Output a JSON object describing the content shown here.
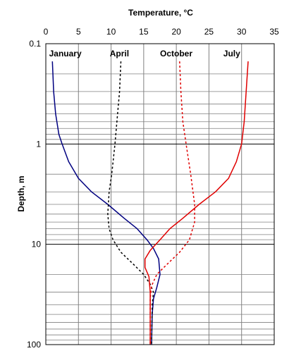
{
  "chart_data": {
    "type": "line",
    "title": "",
    "xlabel": "Temperature, °C",
    "ylabel": "Depth, m",
    "x_axis_position": "top",
    "xlim": [
      0,
      35
    ],
    "ylim": [
      0.1,
      100
    ],
    "y_scale": "log",
    "y_inverted": true,
    "x_ticks": [
      "0",
      "5",
      "10",
      "15",
      "20",
      "25",
      "30",
      "35"
    ],
    "y_ticks": [
      "0.1",
      "1",
      "10",
      "100"
    ],
    "grid": true,
    "legend": "none",
    "series": [
      {
        "name": "January",
        "color": "#000080",
        "dash": "solid",
        "points": [
          {
            "x": 1.0,
            "y": 0.15
          },
          {
            "x": 1.2,
            "y": 0.3
          },
          {
            "x": 1.5,
            "y": 0.5
          },
          {
            "x": 2.0,
            "y": 0.8
          },
          {
            "x": 2.5,
            "y": 1.0
          },
          {
            "x": 3.5,
            "y": 1.5
          },
          {
            "x": 5.0,
            "y": 2.2
          },
          {
            "x": 7.0,
            "y": 3.0
          },
          {
            "x": 9.5,
            "y": 4.0
          },
          {
            "x": 12.0,
            "y": 5.5
          },
          {
            "x": 14.0,
            "y": 7.0
          },
          {
            "x": 15.5,
            "y": 9.0
          },
          {
            "x": 16.5,
            "y": 11.0
          },
          {
            "x": 17.3,
            "y": 14.0
          },
          {
            "x": 17.5,
            "y": 20.0
          },
          {
            "x": 17.0,
            "y": 27.0
          },
          {
            "x": 16.5,
            "y": 35.0
          },
          {
            "x": 16.3,
            "y": 50.0
          },
          {
            "x": 16.2,
            "y": 100.0
          }
        ]
      },
      {
        "name": "April",
        "color": "#000000",
        "dash": "dashed",
        "points": [
          {
            "x": 11.5,
            "y": 0.15
          },
          {
            "x": 11.3,
            "y": 0.3
          },
          {
            "x": 11.0,
            "y": 0.5
          },
          {
            "x": 10.6,
            "y": 1.0
          },
          {
            "x": 10.1,
            "y": 2.0
          },
          {
            "x": 9.7,
            "y": 3.0
          },
          {
            "x": 9.5,
            "y": 5.0
          },
          {
            "x": 9.7,
            "y": 7.0
          },
          {
            "x": 10.3,
            "y": 9.0
          },
          {
            "x": 11.5,
            "y": 12.0
          },
          {
            "x": 13.5,
            "y": 16.0
          },
          {
            "x": 15.0,
            "y": 20.0
          },
          {
            "x": 16.0,
            "y": 25.0
          },
          {
            "x": 16.5,
            "y": 30.0
          },
          {
            "x": 16.3,
            "y": 40.0
          },
          {
            "x": 16.2,
            "y": 100.0
          }
        ]
      },
      {
        "name": "October",
        "color": "#e00000",
        "dash": "dashed",
        "points": [
          {
            "x": 20.5,
            "y": 0.15
          },
          {
            "x": 20.7,
            "y": 0.3
          },
          {
            "x": 21.0,
            "y": 0.6
          },
          {
            "x": 21.5,
            "y": 1.0
          },
          {
            "x": 22.2,
            "y": 2.0
          },
          {
            "x": 22.8,
            "y": 4.0
          },
          {
            "x": 22.8,
            "y": 6.0
          },
          {
            "x": 22.0,
            "y": 9.0
          },
          {
            "x": 20.5,
            "y": 12.0
          },
          {
            "x": 18.5,
            "y": 16.0
          },
          {
            "x": 17.0,
            "y": 20.0
          },
          {
            "x": 16.2,
            "y": 26.0
          },
          {
            "x": 16.0,
            "y": 35.0
          },
          {
            "x": 16.0,
            "y": 100.0
          }
        ]
      },
      {
        "name": "July",
        "color": "#e00000",
        "dash": "solid",
        "points": [
          {
            "x": 31.0,
            "y": 0.15
          },
          {
            "x": 30.7,
            "y": 0.3
          },
          {
            "x": 30.4,
            "y": 0.6
          },
          {
            "x": 30.0,
            "y": 1.0
          },
          {
            "x": 29.2,
            "y": 1.5
          },
          {
            "x": 28.0,
            "y": 2.2
          },
          {
            "x": 26.0,
            "y": 3.0
          },
          {
            "x": 23.5,
            "y": 4.0
          },
          {
            "x": 21.0,
            "y": 5.5
          },
          {
            "x": 19.0,
            "y": 7.0
          },
          {
            "x": 17.5,
            "y": 9.0
          },
          {
            "x": 16.0,
            "y": 11.5
          },
          {
            "x": 15.2,
            "y": 14.0
          },
          {
            "x": 15.2,
            "y": 17.0
          },
          {
            "x": 15.8,
            "y": 21.0
          },
          {
            "x": 16.0,
            "y": 30.0
          },
          {
            "x": 16.0,
            "y": 100.0
          }
        ]
      }
    ],
    "labels": [
      {
        "text": "January",
        "x": 0.5,
        "y": 0.125
      },
      {
        "text": "April",
        "x": 9.8,
        "y": 0.125
      },
      {
        "text": "October",
        "x": 17.5,
        "y": 0.125
      },
      {
        "text": "July",
        "x": 27.2,
        "y": 0.125
      }
    ]
  }
}
